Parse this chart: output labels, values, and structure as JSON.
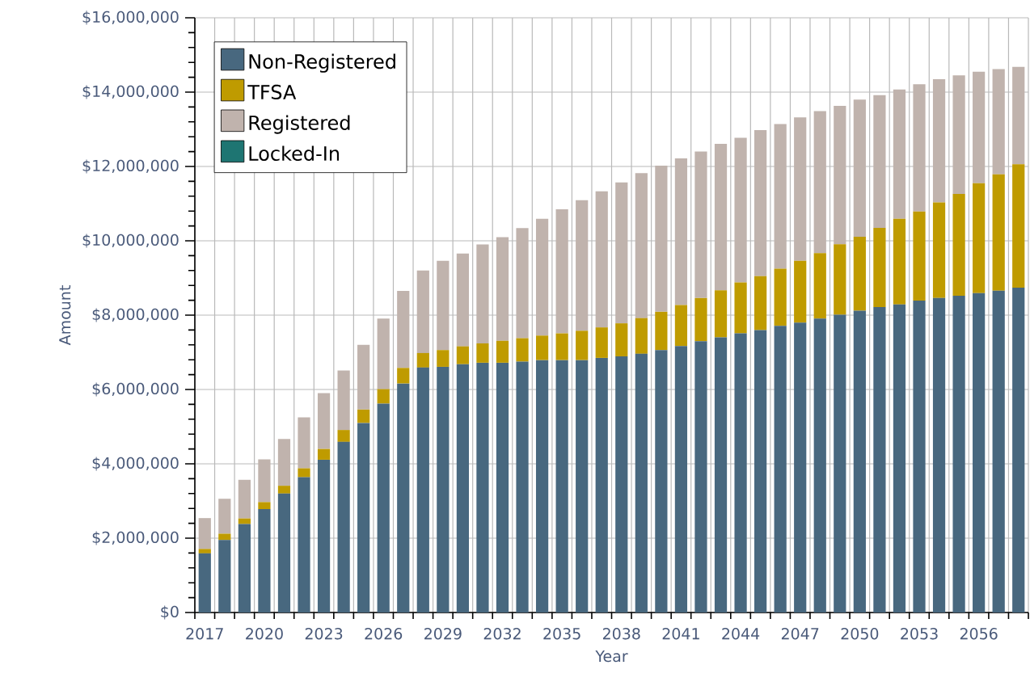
{
  "chart_data": {
    "type": "bar",
    "stacked": true,
    "xlabel": "Year",
    "ylabel": "Amount",
    "categories": [
      "2017",
      null,
      null,
      "2020",
      null,
      null,
      "2023",
      null,
      null,
      "2026",
      null,
      null,
      "2029",
      null,
      null,
      "2032",
      null,
      null,
      "2035",
      null,
      null,
      "2038",
      null,
      null,
      "2041",
      null,
      null,
      "2044",
      null,
      null,
      "2047",
      null,
      null,
      "2050",
      null,
      null,
      "2053",
      null,
      null,
      "2056",
      null,
      null
    ],
    "ylim": [
      0,
      16000000
    ],
    "yticks": [
      {
        "value": 0,
        "label": "$0"
      },
      {
        "value": 2000000,
        "label": "$2,000,000"
      },
      {
        "value": 4000000,
        "label": "$4,000,000"
      },
      {
        "value": 6000000,
        "label": "$6,000,000"
      },
      {
        "value": 8000000,
        "label": "$8,000,000"
      },
      {
        "value": 10000000,
        "label": "$10,000,000"
      },
      {
        "value": 12000000,
        "label": "$12,000,000"
      },
      {
        "value": 14000000,
        "label": "$14,000,000"
      },
      {
        "value": 16000000,
        "label": "$16,000,000"
      }
    ],
    "grid": true,
    "legend": "top left",
    "series": [
      {
        "name": "Non-Registered",
        "color": "#48687f",
        "values": [
          1590000,
          1950000,
          2380000,
          2780000,
          3200000,
          3640000,
          4110000,
          4590000,
          5100000,
          5620000,
          6160000,
          6590000,
          6610000,
          6680000,
          6720000,
          6720000,
          6750000,
          6790000,
          6790000,
          6790000,
          6850000,
          6890000,
          6960000,
          7060000,
          7170000,
          7300000,
          7400000,
          7510000,
          7600000,
          7710000,
          7800000,
          7910000,
          8010000,
          8120000,
          8220000,
          8290000,
          8390000,
          8460000,
          8520000,
          8590000,
          8660000,
          8740000
        ]
      },
      {
        "name": "TFSA",
        "color": "#bf9b00",
        "values": [
          120000,
          170000,
          150000,
          190000,
          210000,
          240000,
          290000,
          320000,
          360000,
          390000,
          420000,
          390000,
          450000,
          480000,
          520000,
          590000,
          630000,
          660000,
          720000,
          790000,
          820000,
          890000,
          960000,
          1030000,
          1100000,
          1160000,
          1270000,
          1370000,
          1450000,
          1540000,
          1660000,
          1760000,
          1900000,
          1990000,
          2130000,
          2300000,
          2400000,
          2570000,
          2740000,
          2960000,
          3130000,
          3320000
        ]
      },
      {
        "name": "Registered",
        "color": "#c0b3ad",
        "values": [
          830000,
          940000,
          1040000,
          1150000,
          1260000,
          1370000,
          1500000,
          1600000,
          1740000,
          1900000,
          2070000,
          2220000,
          2400000,
          2500000,
          2660000,
          2790000,
          2960000,
          3140000,
          3340000,
          3510000,
          3660000,
          3790000,
          3900000,
          3930000,
          3950000,
          3940000,
          3940000,
          3890000,
          3930000,
          3890000,
          3860000,
          3820000,
          3720000,
          3690000,
          3570000,
          3480000,
          3420000,
          3320000,
          3190000,
          3000000,
          2830000,
          2620000
        ]
      },
      {
        "name": "Locked-In",
        "color": "#1e7572",
        "values": [
          0,
          0,
          0,
          0,
          0,
          0,
          0,
          0,
          0,
          0,
          0,
          0,
          0,
          0,
          0,
          0,
          0,
          0,
          0,
          0,
          0,
          0,
          0,
          0,
          0,
          0,
          0,
          0,
          0,
          0,
          0,
          0,
          0,
          0,
          0,
          0,
          0,
          0,
          0,
          0,
          0,
          0
        ]
      }
    ]
  }
}
